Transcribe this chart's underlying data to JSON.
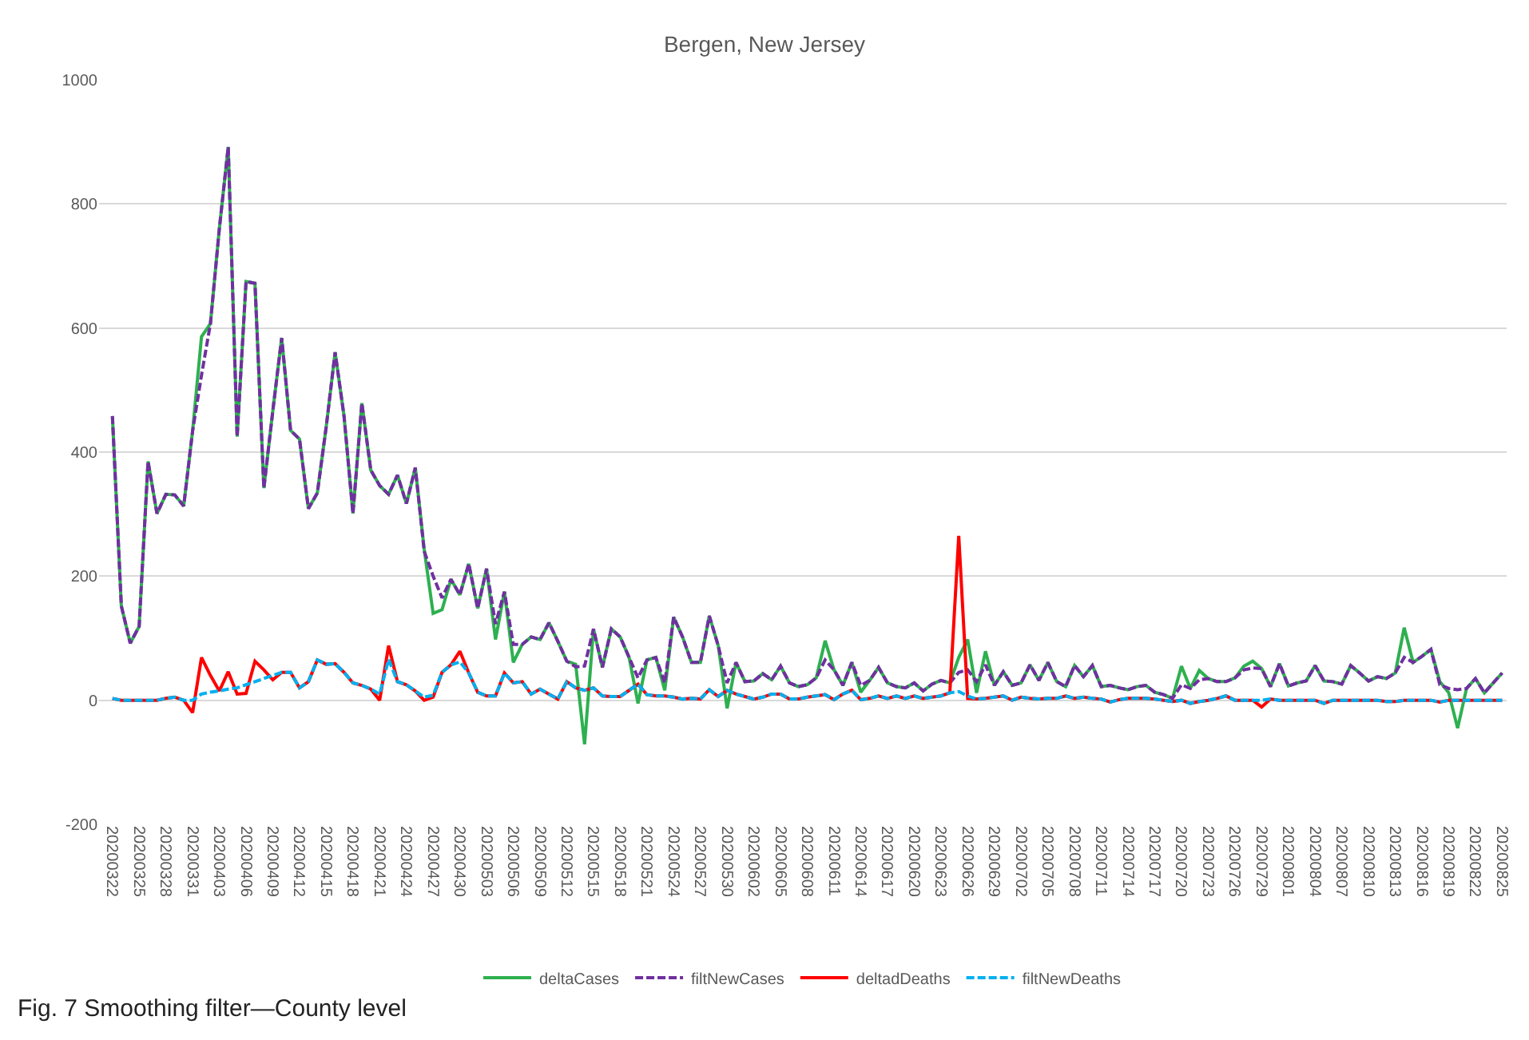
{
  "chart_data": {
    "type": "line",
    "title": "Bergen, New Jersey",
    "categories": [
      "20200322",
      null,
      null,
      "20200325",
      null,
      null,
      "20200328",
      null,
      null,
      "20200331",
      null,
      null,
      "20200403",
      null,
      null,
      "20200406",
      null,
      null,
      "20200409",
      null,
      null,
      "20200412",
      null,
      null,
      "20200415",
      null,
      null,
      "20200418",
      null,
      null,
      "20200421",
      null,
      null,
      "20200424",
      null,
      null,
      "20200427",
      null,
      null,
      "20200430",
      null,
      null,
      "20200503",
      null,
      null,
      "20200506",
      null,
      null,
      "20200509",
      null,
      null,
      "20200512",
      null,
      null,
      "20200515",
      null,
      null,
      "20200518",
      null,
      null,
      "20200521",
      null,
      null,
      "20200524",
      null,
      null,
      "20200527",
      null,
      null,
      "20200530",
      null,
      null,
      "20200602",
      null,
      null,
      "20200605",
      null,
      null,
      "20200608",
      null,
      null,
      "20200611",
      null,
      null,
      "20200614",
      null,
      null,
      "20200617",
      null,
      null,
      "20200620",
      null,
      null,
      "20200623",
      null,
      null,
      "20200626",
      null,
      null,
      "20200629",
      null,
      null,
      "20200702",
      null,
      null,
      "20200705",
      null,
      null,
      "20200708",
      null,
      null,
      "20200711",
      null,
      null,
      "20200714",
      null,
      null,
      "20200717",
      null,
      null,
      "20200720",
      null,
      null,
      "20200723",
      null,
      null,
      "20200726",
      null,
      null,
      "20200729",
      null,
      null,
      "20200801",
      null,
      null,
      "20200804",
      null,
      null,
      "20200807",
      null,
      null,
      "20200810",
      null,
      null,
      "20200813",
      null,
      null,
      "20200816",
      null,
      null,
      "20200819",
      null,
      null,
      "20200822",
      null,
      null,
      "20200825"
    ],
    "series": [
      {
        "name": "deltaCases",
        "color": "#2eb050",
        "line_style": "solid",
        "values": [
          458,
          152,
          92,
          119,
          385,
          301,
          332,
          331,
          313,
          434,
          586,
          607,
          760,
          892,
          425,
          675,
          672,
          342,
          466,
          584,
          435,
          421,
          309,
          334,
          441,
          561,
          458,
          301,
          479,
          371,
          346,
          332,
          363,
          317,
          375,
          243,
          140,
          146,
          195,
          170,
          220,
          148,
          212,
          98,
          175,
          61,
          90,
          102,
          98,
          125,
          95,
          63,
          58,
          -71,
          115,
          53,
          115,
          102,
          69,
          -5,
          65,
          69,
          16,
          134,
          102,
          61,
          61,
          136,
          88,
          -13,
          61,
          30,
          31,
          43,
          33,
          55,
          28,
          22,
          25,
          36,
          96,
          49,
          24,
          61,
          13,
          32,
          53,
          28,
          22,
          20,
          28,
          15,
          26,
          32,
          28,
          69,
          98,
          12,
          79,
          24,
          46,
          24,
          28,
          57,
          32,
          61,
          30,
          22,
          56,
          38,
          56,
          22,
          24,
          20,
          17,
          22,
          24,
          13,
          9,
          3,
          55,
          19,
          48,
          35,
          30,
          30,
          36,
          55,
          63,
          51,
          22,
          59,
          23,
          28,
          31,
          56,
          31,
          30,
          26,
          56,
          44,
          31,
          38,
          35,
          44,
          117,
          61,
          71,
          82,
          30,
          12,
          -45,
          19,
          35,
          12,
          28,
          44
        ]
      },
      {
        "name": "filtNewCases",
        "color": "#7030a0",
        "line_style": "dashed",
        "values": [
          458,
          152,
          92,
          119,
          385,
          301,
          332,
          331,
          313,
          434,
          524,
          607,
          760,
          892,
          425,
          675,
          672,
          342,
          466,
          584,
          435,
          421,
          309,
          334,
          441,
          561,
          458,
          301,
          479,
          371,
          346,
          332,
          363,
          317,
          375,
          240,
          200,
          165,
          195,
          170,
          220,
          148,
          212,
          123,
          175,
          90,
          90,
          102,
          98,
          125,
          95,
          63,
          54,
          55,
          115,
          53,
          115,
          102,
          69,
          36,
          65,
          69,
          28,
          134,
          102,
          61,
          61,
          136,
          88,
          28,
          61,
          30,
          31,
          43,
          33,
          55,
          28,
          22,
          25,
          36,
          65,
          49,
          24,
          61,
          24,
          32,
          53,
          28,
          22,
          20,
          28,
          15,
          26,
          32,
          28,
          45,
          49,
          30,
          57,
          24,
          46,
          24,
          28,
          57,
          32,
          61,
          30,
          22,
          56,
          38,
          56,
          22,
          24,
          20,
          17,
          22,
          24,
          13,
          9,
          3,
          25,
          19,
          33,
          35,
          30,
          30,
          36,
          49,
          52,
          51,
          22,
          59,
          23,
          28,
          31,
          56,
          31,
          30,
          26,
          56,
          44,
          31,
          38,
          35,
          44,
          69,
          61,
          71,
          82,
          25,
          19,
          17,
          19,
          35,
          12,
          28,
          44
        ]
      },
      {
        "name": "deltadDeaths",
        "color": "#ff0000",
        "line_style": "solid",
        "values": [
          3,
          0,
          0,
          0,
          0,
          0,
          3,
          5,
          0,
          -20,
          69,
          40,
          15,
          46,
          10,
          11,
          63,
          49,
          33,
          45,
          45,
          20,
          30,
          65,
          58,
          59,
          45,
          28,
          24,
          18,
          0,
          88,
          30,
          25,
          15,
          0,
          5,
          45,
          57,
          79,
          44,
          13,
          7,
          7,
          44,
          28,
          30,
          10,
          18,
          10,
          2,
          30,
          20,
          16,
          20,
          7,
          6,
          6,
          16,
          26,
          9,
          7,
          7,
          5,
          2,
          3,
          2,
          17,
          6,
          16,
          10,
          6,
          2,
          5,
          10,
          10,
          2,
          2,
          5,
          7,
          9,
          1,
          10,
          16,
          1,
          3,
          7,
          3,
          7,
          3,
          7,
          3,
          5,
          7,
          12,
          265,
          3,
          2,
          3,
          5,
          7,
          0,
          5,
          3,
          2,
          3,
          3,
          7,
          3,
          5,
          3,
          2,
          -3,
          1,
          3,
          3,
          3,
          2,
          0,
          -2,
          0,
          -5,
          -2,
          0,
          3,
          7,
          0,
          0,
          0,
          -11,
          2,
          0,
          0,
          0,
          0,
          0,
          -5,
          0,
          0,
          0,
          0,
          0,
          0,
          -2,
          -2,
          0,
          0,
          0,
          0,
          -3,
          0,
          0,
          0,
          0,
          0,
          0,
          0
        ]
      },
      {
        "name": "filtNewDeaths",
        "color": "#00b0f0",
        "line_style": "dashed",
        "values": [
          3,
          0,
          0,
          0,
          0,
          0,
          3,
          5,
          0,
          0,
          10,
          13,
          15,
          18,
          20,
          25,
          30,
          35,
          40,
          45,
          45,
          20,
          30,
          65,
          58,
          59,
          45,
          28,
          24,
          18,
          10,
          66,
          30,
          25,
          15,
          5,
          8,
          45,
          57,
          62,
          44,
          13,
          7,
          7,
          44,
          28,
          30,
          10,
          18,
          10,
          2,
          30,
          20,
          16,
          20,
          7,
          6,
          6,
          16,
          26,
          9,
          7,
          7,
          5,
          2,
          3,
          2,
          17,
          6,
          16,
          10,
          6,
          2,
          5,
          10,
          10,
          2,
          2,
          5,
          7,
          9,
          1,
          10,
          16,
          1,
          3,
          7,
          3,
          7,
          3,
          7,
          3,
          5,
          7,
          12,
          14,
          7,
          2,
          3,
          5,
          7,
          0,
          5,
          3,
          2,
          3,
          3,
          7,
          3,
          5,
          3,
          2,
          -3,
          1,
          3,
          3,
          3,
          2,
          0,
          -2,
          0,
          -5,
          -2,
          0,
          3,
          7,
          0,
          0,
          0,
          0,
          2,
          0,
          0,
          0,
          0,
          0,
          -5,
          0,
          0,
          0,
          0,
          0,
          0,
          -2,
          -2,
          0,
          0,
          0,
          0,
          -3,
          0,
          0,
          0,
          0,
          0,
          0,
          0
        ]
      }
    ],
    "ylim": [
      -200,
      1000
    ],
    "yticks": [
      -200,
      0,
      200,
      400,
      600,
      800,
      1000
    ],
    "grid": "y",
    "legend": "bottom",
    "marker": "none",
    "annotations": [
      "Fig. 7 Smoothing filter—County level"
    ]
  }
}
